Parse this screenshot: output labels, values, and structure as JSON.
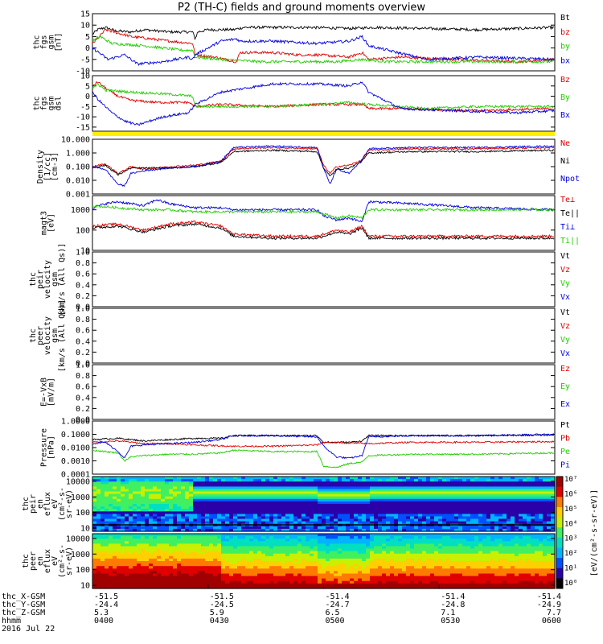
{
  "page": {
    "title": "P2 (TH-C) fields and ground moments overview"
  },
  "colors": {
    "black": "#000000",
    "red": "#dd0000",
    "green": "#22cc00",
    "blue": "#0000dd",
    "yellow": "#ffee00"
  },
  "chart_data": [
    {
      "type": "line",
      "ylabels": [
        "thc",
        "fgs",
        "gsm",
        "[nT]"
      ],
      "yticks": [
        "15",
        "10",
        "5",
        "0",
        "-5",
        "-10"
      ],
      "ylim": [
        -10,
        15
      ],
      "scale": "linear",
      "top": 17,
      "bottom": 88,
      "legend": [
        {
          "label": "Bt",
          "color": "black"
        },
        {
          "label": "bz",
          "color": "red"
        },
        {
          "label": "by",
          "color": "green"
        },
        {
          "label": "bx",
          "color": "blue"
        }
      ],
      "series": [
        {
          "color": "black",
          "x": [
            0,
            4,
            10,
            18,
            30,
            40,
            60,
            78,
            80,
            82,
            90,
            110,
            118,
            150,
            170,
            200,
            220,
            260,
            300,
            360
          ],
          "y": [
            6,
            8,
            9,
            7.5,
            7,
            8,
            7,
            7,
            4,
            7,
            8,
            8,
            9,
            9,
            9,
            8.5,
            9,
            8.5,
            8,
            9
          ]
        },
        {
          "color": "red",
          "x": [
            0,
            4,
            10,
            30,
            60,
            78,
            80,
            95,
            112,
            115,
            140,
            160,
            175,
            200,
            210,
            215,
            240,
            280,
            330,
            360
          ],
          "y": [
            2,
            4,
            8,
            5,
            3,
            2,
            -3,
            -4,
            -6,
            -2,
            -2,
            -3,
            -3,
            -4,
            -2,
            -5,
            -4,
            -5,
            -6,
            -5
          ]
        },
        {
          "color": "green",
          "x": [
            0,
            6,
            15,
            40,
            70,
            78,
            80,
            100,
            130,
            160,
            190,
            210,
            230,
            280,
            330,
            360
          ],
          "y": [
            3,
            5,
            2,
            1,
            -1,
            -1,
            -4,
            -5,
            -6,
            -6,
            -6,
            -5,
            -6,
            -6,
            -6,
            -6
          ]
        },
        {
          "color": "blue",
          "x": [
            0,
            5,
            12,
            25,
            35,
            55,
            75,
            78,
            80,
            100,
            112,
            115,
            140,
            175,
            200,
            210,
            215,
            260,
            300,
            360
          ],
          "y": [
            0,
            -2,
            -5,
            -3,
            -7,
            -6,
            -4,
            -5,
            -3,
            3,
            4,
            3,
            3,
            2,
            3,
            5,
            1,
            -5,
            -4,
            -5
          ]
        }
      ]
    },
    {
      "type": "line",
      "ylabels": [
        "thc",
        "fgs",
        "gsm",
        "dsl"
      ],
      "yticks": [
        "10",
        "5",
        "0",
        "-5",
        "-10",
        "-15"
      ],
      "ylim": [
        -17,
        10
      ],
      "scale": "linear",
      "top": 94,
      "bottom": 163,
      "legend": [
        {
          "label": "Bz",
          "color": "red"
        },
        {
          "label": "By",
          "color": "green"
        },
        {
          "label": "Bx",
          "color": "blue"
        }
      ],
      "series": [
        {
          "color": "red",
          "x": [
            0,
            4,
            10,
            20,
            30,
            50,
            75,
            80,
            100,
            140,
            175,
            210,
            215,
            240,
            300,
            360
          ],
          "y": [
            5,
            7,
            4,
            0,
            -2,
            -3,
            -3,
            -5,
            -4,
            -5,
            -4,
            -4,
            -6,
            -6,
            -7,
            -6
          ]
        },
        {
          "color": "green",
          "x": [
            0,
            4,
            10,
            30,
            60,
            78,
            80,
            110,
            140,
            175,
            200,
            215,
            260,
            300,
            360
          ],
          "y": [
            4,
            6,
            3,
            2,
            1,
            0,
            -5,
            -5,
            -5,
            -4,
            -3,
            -4,
            -6,
            -5,
            -5
          ]
        },
        {
          "color": "blue",
          "x": [
            0,
            5,
            15,
            25,
            35,
            55,
            75,
            80,
            100,
            120,
            140,
            175,
            200,
            210,
            215,
            240,
            280,
            330,
            360
          ],
          "y": [
            2,
            -2,
            -8,
            -12,
            -14,
            -10,
            -8,
            -4,
            2,
            4,
            6,
            6,
            5,
            7,
            2,
            -6,
            -7,
            -8,
            -7
          ]
        }
      ]
    },
    {
      "type": "line",
      "ylabels": [
        "Density",
        "[1/cc]",
        "[cm-3]"
      ],
      "yticks": [
        "10.000",
        "1.000",
        "0.100",
        "0.010",
        "0.001"
      ],
      "ylim": [
        -3,
        1
      ],
      "scale": "log",
      "top": 173,
      "bottom": 241,
      "legend": [
        {
          "label": "Ne",
          "color": "red"
        },
        {
          "label": "Ni",
          "color": "black"
        },
        {
          "label": "Npot",
          "color": "blue"
        }
      ],
      "series": [
        {
          "color": "red",
          "x": [
            0,
            10,
            20,
            30,
            40,
            60,
            80,
            100,
            110,
            140,
            175,
            180,
            185,
            190,
            200,
            210,
            215,
            250,
            300,
            360
          ],
          "y": [
            -1,
            -0.8,
            -1.5,
            -1,
            -1.2,
            -1,
            -0.9,
            -0.6,
            0.3,
            0.4,
            0.3,
            -0.9,
            -1.5,
            -1,
            -0.9,
            -0.5,
            0.2,
            0.3,
            0.3,
            0.4
          ]
        },
        {
          "color": "black",
          "x": [
            0,
            10,
            20,
            30,
            60,
            80,
            100,
            110,
            140,
            175,
            180,
            185,
            190,
            200,
            210,
            215,
            250,
            300,
            360
          ],
          "y": [
            -1.1,
            -0.9,
            -1.6,
            -1.1,
            -1.1,
            -1,
            -0.7,
            0.1,
            0.2,
            0.1,
            -1.1,
            -1.7,
            -1.2,
            -1.1,
            -0.6,
            0,
            0.1,
            0.1,
            0.2
          ]
        },
        {
          "color": "blue",
          "x": [
            0,
            10,
            20,
            25,
            30,
            40,
            60,
            80,
            100,
            110,
            140,
            175,
            180,
            185,
            190,
            200,
            210,
            215,
            250,
            300,
            360
          ],
          "y": [
            -1,
            -1.2,
            -2.3,
            -2.4,
            -1.5,
            -1.3,
            -1.1,
            -1,
            -0.6,
            0.4,
            0.5,
            0.4,
            -1.1,
            -2.3,
            -1.2,
            -1.5,
            -0.5,
            0.3,
            0.4,
            0.4,
            0.5
          ]
        }
      ]
    },
    {
      "type": "line",
      "ylabels": [
        "magt3",
        "[eV]"
      ],
      "yticks": [
        "1000",
        "100",
        "10"
      ],
      "ylim": [
        1,
        3.7
      ],
      "scale": "log",
      "top": 243,
      "bottom": 311,
      "legend": [
        {
          "label": "Te⊥",
          "color": "red"
        },
        {
          "label": "Te||",
          "color": "black"
        },
        {
          "label": "Ti⊥",
          "color": "blue"
        },
        {
          "label": "Ti||",
          "color": "green"
        }
      ],
      "series": [
        {
          "color": "red",
          "x": [
            0,
            20,
            40,
            60,
            80,
            100,
            110,
            140,
            175,
            190,
            200,
            210,
            215,
            250,
            300,
            360
          ],
          "y": [
            2.2,
            2.3,
            2,
            2.3,
            2.4,
            2.2,
            1.8,
            1.7,
            1.7,
            2,
            1.9,
            2.2,
            1.7,
            1.7,
            1.7,
            1.7
          ]
        },
        {
          "color": "black",
          "x": [
            0,
            20,
            40,
            60,
            80,
            100,
            110,
            140,
            175,
            190,
            200,
            210,
            215,
            250,
            300,
            360
          ],
          "y": [
            2.1,
            2.2,
            1.9,
            2.2,
            2.3,
            2.1,
            1.7,
            1.6,
            1.6,
            1.9,
            1.8,
            2.1,
            1.6,
            1.6,
            1.6,
            1.6
          ]
        },
        {
          "color": "blue",
          "x": [
            0,
            10,
            20,
            40,
            50,
            60,
            80,
            100,
            110,
            140,
            175,
            180,
            190,
            200,
            210,
            215,
            250,
            300,
            360
          ],
          "y": [
            3.1,
            3.3,
            3.4,
            3.2,
            3.5,
            3.3,
            3.1,
            3.1,
            3,
            3,
            3,
            2.7,
            2.5,
            2.6,
            2.4,
            3.4,
            3.3,
            3.1,
            3
          ]
        },
        {
          "color": "green",
          "x": [
            0,
            20,
            40,
            60,
            80,
            100,
            110,
            140,
            175,
            190,
            200,
            210,
            215,
            250,
            300,
            360
          ],
          "y": [
            3.2,
            3.1,
            3,
            3,
            2.9,
            2.9,
            2.9,
            2.9,
            2.9,
            2.6,
            2.7,
            2.6,
            3,
            3,
            3,
            3
          ]
        }
      ]
    },
    {
      "type": "line",
      "ylabels": [
        "thc",
        "peir",
        "velocity",
        "gsm",
        "[km/s (All Qs)]"
      ],
      "yticks": [
        "1.0",
        "0.8",
        "0.6",
        "0.4",
        "0.2",
        "0.0"
      ],
      "ylim": [
        0,
        1
      ],
      "scale": "linear",
      "top": 313,
      "bottom": 381,
      "legend": [
        {
          "label": "Vt",
          "color": "black"
        },
        {
          "label": "Vz",
          "color": "red"
        },
        {
          "label": "Vy",
          "color": "green"
        },
        {
          "label": "Vx",
          "color": "blue"
        }
      ],
      "series": []
    },
    {
      "type": "line",
      "ylabels": [
        "thc",
        "peer",
        "velocity",
        "gsm",
        "[km/s (All Qs)]"
      ],
      "yticks": [
        "1.0",
        "0.8",
        "0.6",
        "0.4",
        "0.2",
        "0.0"
      ],
      "ylim": [
        0,
        1
      ],
      "scale": "linear",
      "top": 383,
      "bottom": 451,
      "legend": [
        {
          "label": "Vt",
          "color": "black"
        },
        {
          "label": "Vz",
          "color": "red"
        },
        {
          "label": "Vy",
          "color": "green"
        },
        {
          "label": "Vx",
          "color": "blue"
        }
      ],
      "series": []
    },
    {
      "type": "line",
      "ylabels": [
        "E=-VxB",
        "[mV/m]"
      ],
      "yticks": [
        "1.0",
        "0.8",
        "0.6",
        "0.4",
        "0.2",
        "0.0"
      ],
      "ylim": [
        0,
        1
      ],
      "scale": "linear",
      "top": 453,
      "bottom": 521,
      "legend": [
        {
          "label": "Ez",
          "color": "red"
        },
        {
          "label": "Ey",
          "color": "green"
        },
        {
          "label": "Ex",
          "color": "blue"
        }
      ],
      "series": []
    },
    {
      "type": "line",
      "ylabels": [
        "Pressure",
        "[nPa]"
      ],
      "yticks": [
        "1.0000",
        "0.1000",
        "0.0100",
        "0.0010",
        "0.0001"
      ],
      "ylim": [
        -4,
        0
      ],
      "scale": "log",
      "top": 523,
      "bottom": 589,
      "legend": [
        {
          "label": "Pt",
          "color": "black"
        },
        {
          "label": "Pb",
          "color": "red"
        },
        {
          "label": "Pe",
          "color": "green"
        },
        {
          "label": "Pi",
          "color": "blue"
        }
      ],
      "series": [
        {
          "color": "black",
          "x": [
            0,
            20,
            40,
            60,
            80,
            100,
            110,
            140,
            175,
            180,
            200,
            210,
            215,
            250,
            300,
            360
          ],
          "y": [
            -1.4,
            -1.3,
            -1.5,
            -1.4,
            -1.3,
            -1.3,
            -1.1,
            -1.1,
            -1.1,
            -1.6,
            -1.6,
            -1.5,
            -1.1,
            -1.1,
            -1.1,
            -1.05
          ]
        },
        {
          "color": "red",
          "x": [
            0,
            20,
            40,
            60,
            80,
            110,
            140,
            175,
            180,
            215,
            250,
            300,
            360
          ],
          "y": [
            -1.6,
            -1.5,
            -1.7,
            -1.7,
            -1.8,
            -1.9,
            -1.9,
            -1.8,
            -1.6,
            -1.7,
            -1.6,
            -1.6,
            -1.55
          ]
        },
        {
          "color": "green",
          "x": [
            0,
            20,
            25,
            30,
            40,
            60,
            80,
            100,
            110,
            140,
            175,
            180,
            190,
            200,
            210,
            215,
            250,
            300,
            360
          ],
          "y": [
            -2.2,
            -2.4,
            -3,
            -2.7,
            -2.6,
            -2.5,
            -2.5,
            -2.4,
            -2.2,
            -2.3,
            -2.3,
            -3.4,
            -3.5,
            -3.2,
            -3.1,
            -2.6,
            -2.5,
            -2.5,
            -2.4
          ]
        },
        {
          "color": "blue",
          "x": [
            0,
            10,
            20,
            25,
            30,
            40,
            60,
            80,
            100,
            110,
            140,
            175,
            180,
            190,
            200,
            210,
            215,
            250,
            300,
            360
          ],
          "y": [
            -1.7,
            -1.6,
            -2.3,
            -2.8,
            -1.9,
            -1.8,
            -1.7,
            -1.6,
            -1.4,
            -1.1,
            -1.1,
            -1.2,
            -1.9,
            -2.7,
            -2.8,
            -2.6,
            -1.2,
            -1.1,
            -1.1,
            -1
          ]
        }
      ]
    },
    {
      "type": "heatmap",
      "ylabels": [
        "thc",
        "peir",
        "en",
        "eflux",
        "eV",
        "(cm²-s-",
        "sr-eV)"
      ],
      "yticks": [
        "10000",
        "1000",
        "100",
        "10"
      ],
      "ylim": [
        0.8,
        4.3
      ],
      "scale": "log",
      "top": 592,
      "bottom": 660,
      "variant": "ion"
    },
    {
      "type": "heatmap",
      "ylabels": [
        "thc",
        "peer",
        "en",
        "eflux",
        "eV",
        "(cm²-s-",
        "sr-eV)"
      ],
      "yticks": [
        "10000",
        "1000",
        "100",
        "10"
      ],
      "ylim": [
        0.8,
        4.3
      ],
      "scale": "log",
      "top": 663,
      "bottom": 731,
      "variant": "electron"
    }
  ],
  "colorbar": {
    "label": "[eV/(cm²-s-sr-eV)]",
    "ticks": [
      "10⁷",
      "10⁶",
      "10⁵",
      "10⁴",
      "10³",
      "10²",
      "10¹",
      "10⁰"
    ]
  },
  "time_axis": {
    "row_labels": [
      "thc_X-GSM",
      "thc_Y-GSM",
      "thc_Z-GSM",
      "hhmm",
      "2016 Jul 22"
    ],
    "columns": [
      {
        "x": "-51.5",
        "y": "-24.4",
        "z": "5.3",
        "t": "0400"
      },
      {
        "x": "-51.5",
        "y": "-24.5",
        "z": "5.9",
        "t": "0430"
      },
      {
        "x": "-51.4",
        "y": "-24.7",
        "z": "6.5",
        "t": "0500"
      },
      {
        "x": "-51.4",
        "y": "-24.8",
        "z": "7.1",
        "t": "0530"
      },
      {
        "x": "-51.4",
        "y": "-24.9",
        "z": "7.7",
        "t": "0600"
      }
    ]
  }
}
